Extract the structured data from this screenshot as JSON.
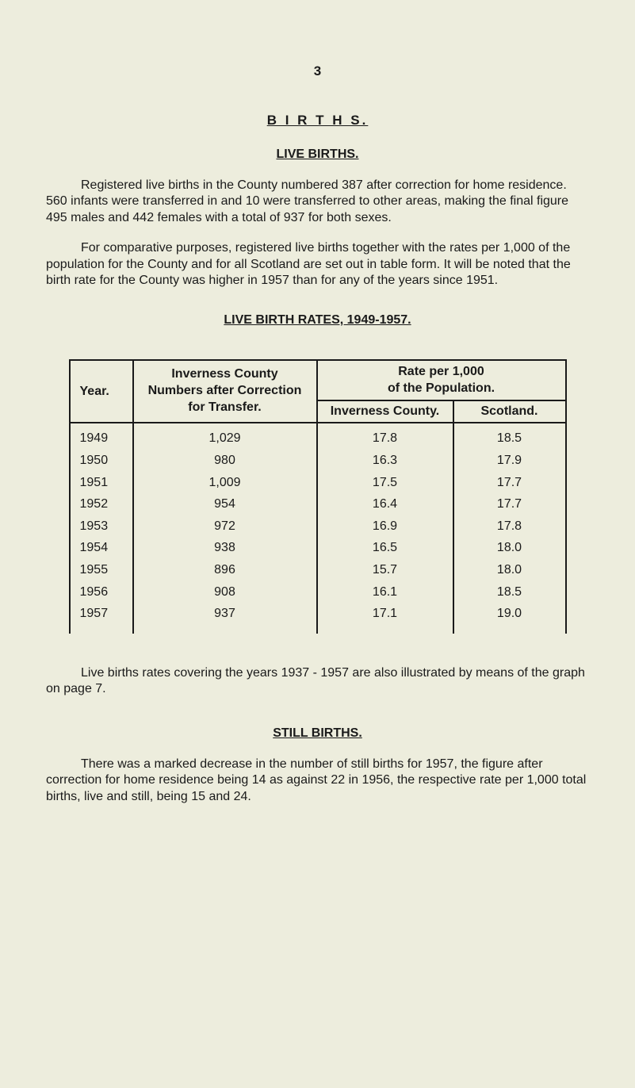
{
  "page_number": "3",
  "title_main": "B I R T H S.",
  "sections": {
    "live_births": {
      "heading": "LIVE  BIRTHS.",
      "para1": "Registered live births in the County numbered 387 after correction for home residence. 560 infants were transferred in and 10 were transferred to other areas, making the final figure 495 males and 442 females with a total of 937 for both sexes.",
      "para2": "For comparative purposes, registered live births together with the rates per 1,000 of the population for the County and for all Scotland are set out in table form.  It will be noted that the birth rate for the County was higher in 1957 than for any of the years since 1951."
    },
    "rates_table": {
      "heading": "LIVE BIRTH RATES, 1949-1957.",
      "col_year": "Year.",
      "col_numbers_l1": "Inverness County",
      "col_numbers_l2": "Numbers after Correction",
      "col_numbers_l3": "for Transfer.",
      "col_rate_l1": "Rate per 1,000",
      "col_rate_l2": "of the Population.",
      "col_inverness": "Inverness County.",
      "col_scotland": "Scotland.",
      "rows": [
        {
          "year": "1949",
          "numbers": "1,029",
          "inverness": "17.8",
          "scotland": "18.5"
        },
        {
          "year": "1950",
          "numbers": "980",
          "inverness": "16.3",
          "scotland": "17.9"
        },
        {
          "year": "1951",
          "numbers": "1,009",
          "inverness": "17.5",
          "scotland": "17.7"
        },
        {
          "year": "1952",
          "numbers": "954",
          "inverness": "16.4",
          "scotland": "17.7"
        },
        {
          "year": "1953",
          "numbers": "972",
          "inverness": "16.9",
          "scotland": "17.8"
        },
        {
          "year": "1954",
          "numbers": "938",
          "inverness": "16.5",
          "scotland": "18.0"
        },
        {
          "year": "1955",
          "numbers": "896",
          "inverness": "15.7",
          "scotland": "18.0"
        },
        {
          "year": "1956",
          "numbers": "908",
          "inverness": "16.1",
          "scotland": "18.5"
        },
        {
          "year": "1957",
          "numbers": "937",
          "inverness": "17.1",
          "scotland": "19.0"
        }
      ]
    },
    "graph_note": "Live births rates covering the years 1937 - 1957 are also illustrated by means of the graph on page 7.",
    "still_births": {
      "heading": "STILL  BIRTHS.",
      "para": "There was a marked decrease in the number of still births for 1957, the figure after correction for home residence being 14 as against 22 in 1956, the respective rate per 1,000 total births, live and still, being 15 and 24."
    }
  },
  "style": {
    "background_color": "#ededdd",
    "text_color": "#1a1a1a",
    "border_color": "#1a1a1a",
    "body_fontsize": 16,
    "heading_fontsize": 17
  }
}
